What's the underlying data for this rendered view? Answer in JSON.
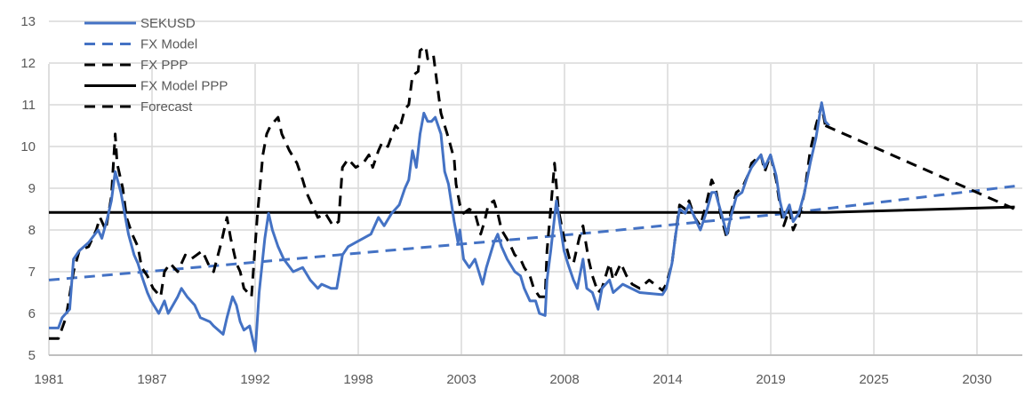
{
  "chart_data": {
    "type": "line",
    "title": "",
    "xlabel": "",
    "ylabel": "",
    "xlim": [
      1981,
      2032.4
    ],
    "ylim": [
      5,
      13
    ],
    "y_ticks": [
      5,
      6,
      7,
      8,
      9,
      10,
      11,
      12,
      13
    ],
    "x_tick_labels": [
      "1981",
      "1987",
      "1992",
      "1998",
      "2003",
      "2008",
      "2014",
      "2019",
      "2025",
      "2030"
    ],
    "grid": true,
    "legend_position": "top-left",
    "series": [
      {
        "name": "SEKUSD",
        "color": "#4472C4",
        "style": "solid",
        "points": [
          [
            1981.0,
            5.65
          ],
          [
            1981.5,
            5.65
          ],
          [
            1981.7,
            5.9
          ],
          [
            1982.1,
            6.1
          ],
          [
            1982.3,
            7.3
          ],
          [
            1982.6,
            7.5
          ],
          [
            1983.1,
            7.7
          ],
          [
            1983.6,
            8.0
          ],
          [
            1983.8,
            7.8
          ],
          [
            1984.1,
            8.3
          ],
          [
            1984.3,
            8.7
          ],
          [
            1984.5,
            9.4
          ],
          [
            1984.8,
            8.9
          ],
          [
            1985.0,
            8.4
          ],
          [
            1985.2,
            7.9
          ],
          [
            1985.5,
            7.4
          ],
          [
            1985.7,
            7.2
          ],
          [
            1985.9,
            6.9
          ],
          [
            1986.2,
            6.5
          ],
          [
            1986.4,
            6.3
          ],
          [
            1986.8,
            6.0
          ],
          [
            1987.1,
            6.3
          ],
          [
            1987.3,
            6.0
          ],
          [
            1987.8,
            6.4
          ],
          [
            1988.0,
            6.6
          ],
          [
            1988.3,
            6.4
          ],
          [
            1988.7,
            6.2
          ],
          [
            1989.0,
            5.9
          ],
          [
            1989.5,
            5.8
          ],
          [
            1989.7,
            5.7
          ],
          [
            1990.2,
            5.5
          ],
          [
            1990.4,
            5.9
          ],
          [
            1990.7,
            6.4
          ],
          [
            1990.9,
            6.2
          ],
          [
            1991.1,
            5.8
          ],
          [
            1991.3,
            5.6
          ],
          [
            1991.6,
            5.7
          ],
          [
            1991.9,
            5.1
          ],
          [
            1992.1,
            6.5
          ],
          [
            1992.4,
            7.8
          ],
          [
            1992.6,
            8.4
          ],
          [
            1992.8,
            8.0
          ],
          [
            1993.1,
            7.6
          ],
          [
            1993.4,
            7.3
          ],
          [
            1993.9,
            7.0
          ],
          [
            1994.4,
            7.1
          ],
          [
            1994.8,
            6.8
          ],
          [
            1995.2,
            6.6
          ],
          [
            1995.4,
            6.7
          ],
          [
            1995.9,
            6.6
          ],
          [
            1996.2,
            6.6
          ],
          [
            1996.5,
            7.4
          ],
          [
            1996.8,
            7.6
          ],
          [
            1997.2,
            7.7
          ],
          [
            1997.6,
            7.8
          ],
          [
            1998.0,
            7.9
          ],
          [
            1998.4,
            8.3
          ],
          [
            1998.7,
            8.1
          ],
          [
            1999.1,
            8.4
          ],
          [
            1999.5,
            8.6
          ],
          [
            1999.8,
            9.0
          ],
          [
            2000.0,
            9.2
          ],
          [
            2000.2,
            9.9
          ],
          [
            2000.4,
            9.5
          ],
          [
            2000.6,
            10.3
          ],
          [
            2000.8,
            10.8
          ],
          [
            2001.0,
            10.6
          ],
          [
            2001.2,
            10.6
          ],
          [
            2001.4,
            10.7
          ],
          [
            2001.7,
            10.3
          ],
          [
            2001.9,
            9.4
          ],
          [
            2002.1,
            9.1
          ],
          [
            2002.4,
            8.2
          ],
          [
            2002.6,
            7.7
          ],
          [
            2002.7,
            8.0
          ],
          [
            2002.9,
            7.3
          ],
          [
            2003.2,
            7.1
          ],
          [
            2003.5,
            7.3
          ],
          [
            2003.9,
            6.7
          ],
          [
            2004.1,
            7.1
          ],
          [
            2004.5,
            7.7
          ],
          [
            2004.7,
            7.9
          ],
          [
            2004.9,
            7.6
          ],
          [
            2005.2,
            7.3
          ],
          [
            2005.6,
            7.0
          ],
          [
            2005.9,
            6.9
          ],
          [
            2006.1,
            6.6
          ],
          [
            2006.4,
            6.3
          ],
          [
            2006.7,
            6.3
          ],
          [
            2006.9,
            6.0
          ],
          [
            2007.2,
            5.95
          ],
          [
            2007.3,
            6.8
          ],
          [
            2007.5,
            7.5
          ],
          [
            2007.8,
            8.7
          ],
          [
            2008.0,
            8.1
          ],
          [
            2008.2,
            7.5
          ],
          [
            2008.4,
            7.2
          ],
          [
            2008.7,
            6.8
          ],
          [
            2008.9,
            6.6
          ],
          [
            2009.2,
            7.3
          ],
          [
            2009.4,
            6.6
          ],
          [
            2009.7,
            6.5
          ],
          [
            2010.0,
            6.1
          ],
          [
            2010.2,
            6.6
          ],
          [
            2010.6,
            6.8
          ],
          [
            2010.8,
            6.5
          ],
          [
            2011.3,
            6.7
          ],
          [
            2012.2,
            6.5
          ],
          [
            2013.4,
            6.45
          ],
          [
            2013.6,
            6.6
          ],
          [
            2013.9,
            7.2
          ],
          [
            2014.1,
            7.9
          ],
          [
            2014.3,
            8.5
          ],
          [
            2014.6,
            8.4
          ],
          [
            2014.8,
            8.6
          ],
          [
            2015.1,
            8.3
          ],
          [
            2015.4,
            8.0
          ],
          [
            2015.7,
            8.4
          ],
          [
            2016.0,
            8.9
          ],
          [
            2016.2,
            8.9
          ],
          [
            2016.5,
            8.4
          ],
          [
            2016.8,
            7.9
          ],
          [
            2017.0,
            8.3
          ],
          [
            2017.3,
            8.8
          ],
          [
            2017.6,
            8.9
          ],
          [
            2017.9,
            9.3
          ],
          [
            2018.1,
            9.5
          ],
          [
            2018.6,
            9.8
          ],
          [
            2018.8,
            9.5
          ],
          [
            2019.1,
            9.8
          ],
          [
            2019.4,
            9.3
          ],
          [
            2019.6,
            8.7
          ],
          [
            2019.8,
            8.3
          ],
          [
            2020.1,
            8.6
          ],
          [
            2020.3,
            8.2
          ],
          [
            2020.6,
            8.4
          ],
          [
            2020.9,
            8.9
          ],
          [
            2021.2,
            9.6
          ],
          [
            2021.5,
            10.2
          ],
          [
            2021.8,
            11.05
          ],
          [
            2022.0,
            10.6
          ],
          [
            2022.2,
            10.5
          ]
        ]
      },
      {
        "name": "FX Model",
        "color": "#4472C4",
        "style": "dashed",
        "points": [
          [
            1981.0,
            6.8
          ],
          [
            1990.0,
            7.15
          ],
          [
            2000.0,
            7.55
          ],
          [
            2010.0,
            7.95
          ],
          [
            2020.0,
            8.4
          ],
          [
            2032.0,
            9.05
          ]
        ]
      },
      {
        "name": "FX PPP",
        "color": "#000000",
        "style": "dashed",
        "points": [
          [
            1981.0,
            5.4
          ],
          [
            1981.5,
            5.4
          ],
          [
            1981.9,
            5.9
          ],
          [
            1982.3,
            7.0
          ],
          [
            1982.6,
            7.5
          ],
          [
            1983.1,
            7.6
          ],
          [
            1983.5,
            8.0
          ],
          [
            1983.7,
            8.3
          ],
          [
            1984.0,
            8.0
          ],
          [
            1984.3,
            8.8
          ],
          [
            1984.5,
            10.3
          ],
          [
            1984.6,
            9.6
          ],
          [
            1984.9,
            9.0
          ],
          [
            1985.1,
            8.3
          ],
          [
            1985.4,
            7.9
          ],
          [
            1985.7,
            7.6
          ],
          [
            1985.9,
            7.1
          ],
          [
            1986.2,
            6.9
          ],
          [
            1986.5,
            6.6
          ],
          [
            1986.9,
            6.4
          ],
          [
            1987.1,
            7.0
          ],
          [
            1987.4,
            7.2
          ],
          [
            1987.8,
            7.0
          ],
          [
            1988.2,
            7.4
          ],
          [
            1988.5,
            7.3
          ],
          [
            1988.8,
            7.4
          ],
          [
            1989.1,
            7.5
          ],
          [
            1989.5,
            7.1
          ],
          [
            1989.7,
            7.0
          ],
          [
            1990.1,
            7.7
          ],
          [
            1990.4,
            8.3
          ],
          [
            1990.6,
            7.8
          ],
          [
            1990.9,
            7.2
          ],
          [
            1991.1,
            7.0
          ],
          [
            1991.3,
            6.6
          ],
          [
            1991.7,
            6.4
          ],
          [
            1992.0,
            8.3
          ],
          [
            1992.3,
            9.8
          ],
          [
            1992.5,
            10.3
          ],
          [
            1992.7,
            10.5
          ],
          [
            1993.1,
            10.7
          ],
          [
            1993.3,
            10.3
          ],
          [
            1993.7,
            9.9
          ],
          [
            1994.1,
            9.6
          ],
          [
            1994.4,
            9.2
          ],
          [
            1994.6,
            8.9
          ],
          [
            1994.9,
            8.6
          ],
          [
            1995.2,
            8.3
          ],
          [
            1995.6,
            8.4
          ],
          [
            1996.0,
            8.1
          ],
          [
            1996.3,
            8.2
          ],
          [
            1996.5,
            9.5
          ],
          [
            1996.8,
            9.7
          ],
          [
            1997.2,
            9.5
          ],
          [
            1997.6,
            9.6
          ],
          [
            1997.9,
            9.8
          ],
          [
            1998.1,
            9.5
          ],
          [
            1998.4,
            9.9
          ],
          [
            1998.6,
            10.1
          ],
          [
            1998.9,
            10.0
          ],
          [
            1999.3,
            10.5
          ],
          [
            1999.5,
            10.4
          ],
          [
            1999.8,
            10.9
          ],
          [
            2000.0,
            11.0
          ],
          [
            2000.2,
            11.7
          ],
          [
            2000.5,
            11.8
          ],
          [
            2000.6,
            12.3
          ],
          [
            2000.9,
            12.4
          ],
          [
            2001.0,
            12.1
          ],
          [
            2001.3,
            12.2
          ],
          [
            2001.5,
            11.5
          ],
          [
            2001.7,
            10.8
          ],
          [
            2001.9,
            10.5
          ],
          [
            2002.1,
            10.2
          ],
          [
            2002.4,
            9.7
          ],
          [
            2002.5,
            9.1
          ],
          [
            2002.7,
            8.6
          ],
          [
            2002.9,
            8.4
          ],
          [
            2003.2,
            8.5
          ],
          [
            2003.5,
            8.4
          ],
          [
            2003.8,
            7.9
          ],
          [
            2004.0,
            8.2
          ],
          [
            2004.2,
            8.6
          ],
          [
            2004.5,
            8.7
          ],
          [
            2004.7,
            8.4
          ],
          [
            2004.9,
            8.0
          ],
          [
            2005.3,
            7.7
          ],
          [
            2005.6,
            7.4
          ],
          [
            2005.9,
            7.3
          ],
          [
            2006.1,
            7.1
          ],
          [
            2006.4,
            6.9
          ],
          [
            2006.6,
            6.6
          ],
          [
            2006.9,
            6.4
          ],
          [
            2007.2,
            6.4
          ],
          [
            2007.3,
            7.5
          ],
          [
            2007.5,
            8.5
          ],
          [
            2007.7,
            9.6
          ],
          [
            2007.9,
            8.5
          ],
          [
            2008.2,
            7.8
          ],
          [
            2008.5,
            7.3
          ],
          [
            2008.7,
            7.2
          ],
          [
            2009.0,
            7.8
          ],
          [
            2009.2,
            8.1
          ],
          [
            2009.5,
            7.3
          ],
          [
            2009.7,
            6.9
          ],
          [
            2010.0,
            6.5
          ],
          [
            2010.2,
            6.6
          ],
          [
            2010.6,
            7.2
          ],
          [
            2010.8,
            6.8
          ],
          [
            2011.2,
            7.2
          ],
          [
            2011.5,
            6.9
          ],
          [
            2011.8,
            6.7
          ],
          [
            2012.2,
            6.6
          ],
          [
            2012.7,
            6.8
          ],
          [
            2013.4,
            6.55
          ],
          [
            2013.6,
            6.7
          ],
          [
            2013.9,
            7.2
          ],
          [
            2014.1,
            7.9
          ],
          [
            2014.3,
            8.6
          ],
          [
            2014.6,
            8.5
          ],
          [
            2014.8,
            8.7
          ],
          [
            2015.1,
            8.3
          ],
          [
            2015.4,
            8.1
          ],
          [
            2015.7,
            8.6
          ],
          [
            2016.0,
            9.2
          ],
          [
            2016.2,
            9.0
          ],
          [
            2016.5,
            8.3
          ],
          [
            2016.8,
            7.8
          ],
          [
            2017.0,
            8.4
          ],
          [
            2017.3,
            8.9
          ],
          [
            2017.6,
            9.0
          ],
          [
            2017.9,
            9.3
          ],
          [
            2018.1,
            9.6
          ],
          [
            2018.6,
            9.8
          ],
          [
            2018.8,
            9.4
          ],
          [
            2019.1,
            9.8
          ],
          [
            2019.4,
            9.2
          ],
          [
            2019.6,
            8.6
          ],
          [
            2019.8,
            8.1
          ],
          [
            2020.1,
            8.5
          ],
          [
            2020.3,
            8.0
          ],
          [
            2020.6,
            8.3
          ],
          [
            2020.9,
            8.9
          ],
          [
            2021.2,
            9.9
          ],
          [
            2021.5,
            10.5
          ],
          [
            2021.8,
            11.0
          ],
          [
            2022.0,
            10.5
          ]
        ]
      },
      {
        "name": "FX Model PPP",
        "color": "#000000",
        "style": "solid",
        "points": [
          [
            1981.0,
            8.42
          ],
          [
            2022.0,
            8.42
          ],
          [
            2032.0,
            8.55
          ]
        ]
      },
      {
        "name": "Forecast",
        "color": "#000000",
        "style": "dashed",
        "points": [
          [
            2022.0,
            10.5
          ],
          [
            2032.0,
            8.5
          ]
        ]
      }
    ]
  }
}
